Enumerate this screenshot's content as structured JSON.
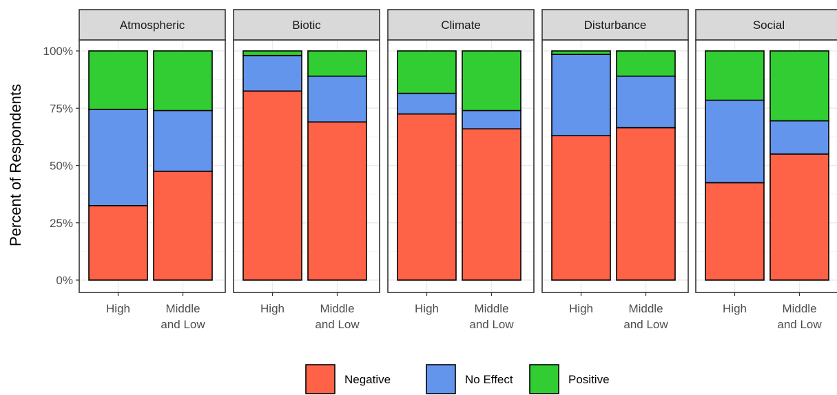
{
  "chart_data": {
    "type": "bar",
    "stacked": true,
    "normalized": true,
    "ylabel": "Percent of Respondents",
    "xlabel": "",
    "ylim": [
      0,
      1
    ],
    "yticks": [
      "0%",
      "25%",
      "50%",
      "75%",
      "100%"
    ],
    "ytick_values": [
      0,
      0.25,
      0.5,
      0.75,
      1.0
    ],
    "categories": [
      "High",
      "Middle\nand Low"
    ],
    "category_lines": [
      [
        "High"
      ],
      [
        "Middle",
        "and Low"
      ]
    ],
    "facets": [
      "Atmospheric",
      "Biotic",
      "Climate",
      "Disturbance",
      "Social"
    ],
    "series_order": [
      "Negative",
      "No Effect",
      "Positive"
    ],
    "colors": {
      "Negative": "#ff6347",
      "No Effect": "#6495ed",
      "Positive": "#32cd32",
      "strip_fill": "#d9d9d9",
      "grid_major": "#ebebeb",
      "grid_minor": "#f5f5f5",
      "panel_border": "#333333",
      "bar_outline": "#000000"
    },
    "legend_position": "bottom",
    "grid": true,
    "data": {
      "Atmospheric": {
        "High": {
          "Negative": 0.325,
          "No Effect": 0.42,
          "Positive": 0.255
        },
        "Middle\nand Low": {
          "Negative": 0.475,
          "No Effect": 0.265,
          "Positive": 0.26
        }
      },
      "Biotic": {
        "High": {
          "Negative": 0.825,
          "No Effect": 0.155,
          "Positive": 0.02
        },
        "Middle\nand Low": {
          "Negative": 0.69,
          "No Effect": 0.2,
          "Positive": 0.11
        }
      },
      "Climate": {
        "High": {
          "Negative": 0.725,
          "No Effect": 0.09,
          "Positive": 0.185
        },
        "Middle\nand Low": {
          "Negative": 0.66,
          "No Effect": 0.08,
          "Positive": 0.26
        }
      },
      "Disturbance": {
        "High": {
          "Negative": 0.63,
          "No Effect": 0.355,
          "Positive": 0.015
        },
        "Middle\nand Low": {
          "Negative": 0.665,
          "No Effect": 0.225,
          "Positive": 0.11
        }
      },
      "Social": {
        "High": {
          "Negative": 0.425,
          "No Effect": 0.36,
          "Positive": 0.215
        },
        "Middle\nand Low": {
          "Negative": 0.55,
          "No Effect": 0.145,
          "Positive": 0.305
        }
      }
    }
  }
}
